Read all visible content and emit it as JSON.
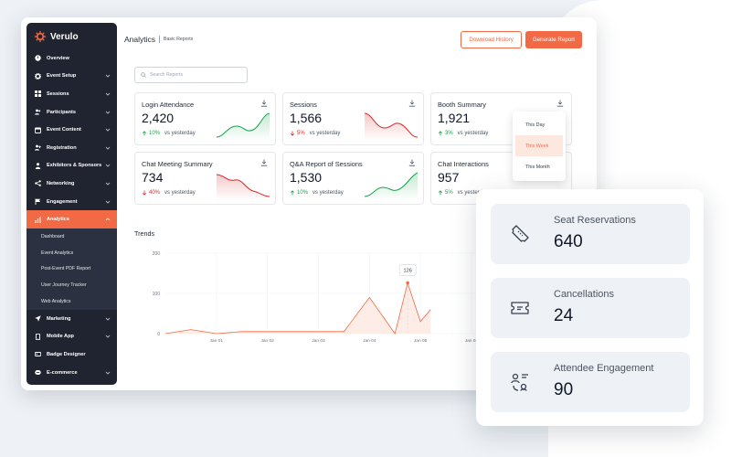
{
  "brand": {
    "name": "Verulo"
  },
  "header": {
    "title": "Analytics",
    "subtitle": "Basic Reports",
    "download_label": "Download History",
    "generate_label": "Generate Report"
  },
  "search": {
    "placeholder": "Search Reports"
  },
  "sidebar": {
    "items": [
      {
        "label": "Overview"
      },
      {
        "label": "Event Setup"
      },
      {
        "label": "Sessions"
      },
      {
        "label": "Participants"
      },
      {
        "label": "Event Content"
      },
      {
        "label": "Registration"
      },
      {
        "label": "Exhibitors & Sponsors"
      },
      {
        "label": "Networking"
      },
      {
        "label": "Engagement"
      },
      {
        "label": "Analytics"
      },
      {
        "label": "Marketing"
      },
      {
        "label": "Mobile App"
      },
      {
        "label": "Badge Designer"
      },
      {
        "label": "E-commerce"
      }
    ],
    "sub_items": [
      {
        "label": "Dashboard"
      },
      {
        "label": "Event Analytics"
      },
      {
        "label": "Post-Event PDF Report"
      },
      {
        "label": "User Journey Tracker"
      },
      {
        "label": "Web Analytics"
      }
    ]
  },
  "cards": [
    {
      "title": "Login Attendance",
      "value": "2,420",
      "pct": "10%",
      "direction": "up",
      "vs": "vs yesterday"
    },
    {
      "title": "Sessions",
      "value": "1,566",
      "pct": "5%",
      "direction": "down",
      "vs": "vs yesterday"
    },
    {
      "title": "Booth Summary",
      "value": "1,921",
      "pct": "3%",
      "direction": "up",
      "vs": "vs yesterday"
    },
    {
      "title": "Chat Meeting Summary",
      "value": "734",
      "pct": "40%",
      "direction": "down",
      "vs": "vs yesterday"
    },
    {
      "title": "Q&A Report of Sessions",
      "value": "1,530",
      "pct": "10%",
      "direction": "up",
      "vs": "vs yesterday"
    },
    {
      "title": "Chat Interactions",
      "value": "957",
      "pct": "5%",
      "direction": "up",
      "vs": "vs yesterday"
    }
  ],
  "dropdown": {
    "options": [
      "This Day",
      "This Week",
      "This Month"
    ],
    "selected": "This Week"
  },
  "trends": {
    "label": "Trends"
  },
  "chart_data": {
    "type": "area",
    "title": "Trends",
    "categories": [
      "Jan 01",
      "Jan 02",
      "Jan 03",
      "Jan 04",
      "Jan 05",
      "Jan 06"
    ],
    "x": [
      0,
      0.5,
      1,
      1.5,
      2,
      2.5,
      3,
      3.5,
      4,
      4.5,
      4.75,
      5,
      5.2
    ],
    "values": [
      0,
      10,
      0,
      5,
      5,
      5,
      5,
      5,
      90,
      0,
      126,
      30,
      60
    ],
    "yticks": [
      0,
      100,
      200
    ],
    "ylim": [
      0,
      200
    ],
    "annotation": {
      "label": "126",
      "x": 4.75,
      "y": 126
    },
    "grid": true,
    "colors": {
      "line": "#f26a45",
      "fill": "#fde8e0"
    }
  },
  "stats": [
    {
      "label": "Seat Reservations",
      "value": "640",
      "icon": "ticket-icon"
    },
    {
      "label": "Cancellations",
      "value": "24",
      "icon": "ticket-cancel-icon"
    },
    {
      "label": "Attendee Engagement",
      "value": "90",
      "icon": "people-engagement-icon"
    }
  ],
  "colors": {
    "accent": "#f26a45",
    "sidebar": "#1f2430",
    "up": "#16a34a",
    "down": "#dc2626"
  }
}
